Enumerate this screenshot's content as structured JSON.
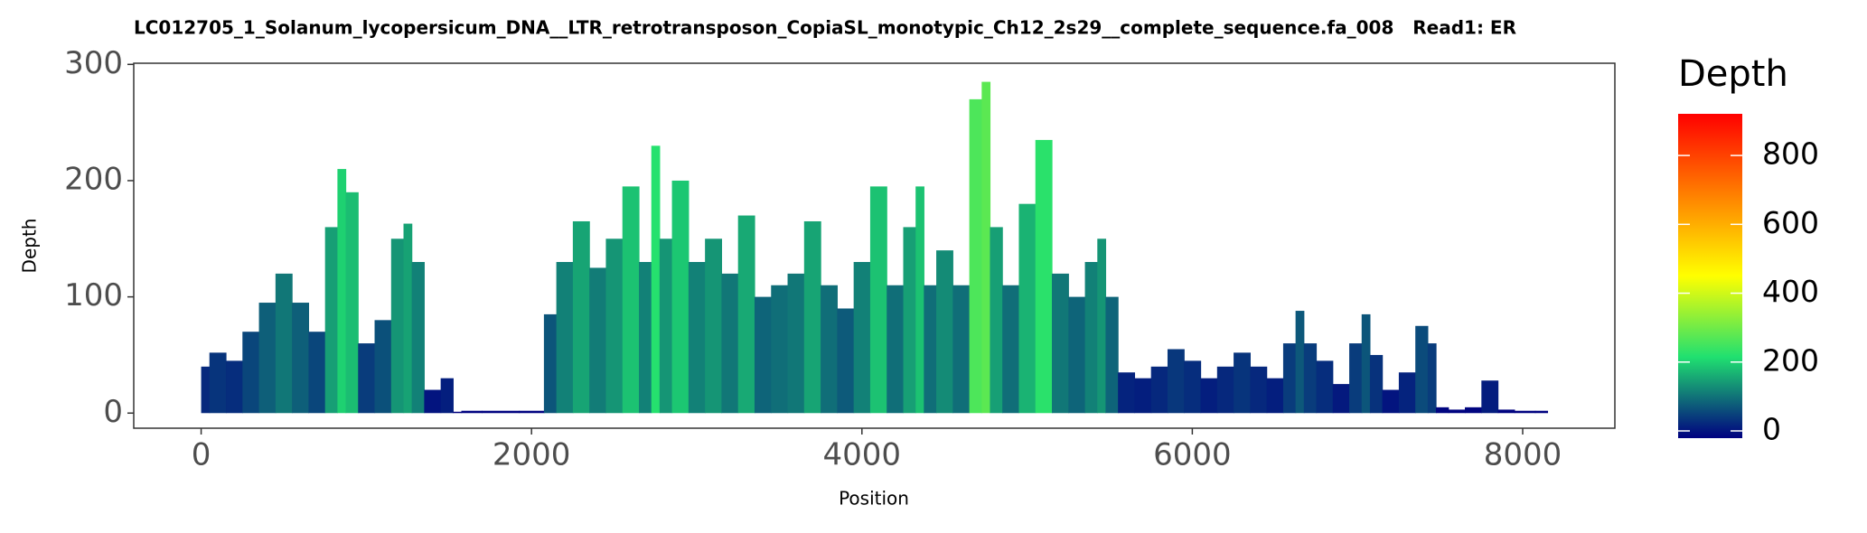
{
  "chart_data": {
    "type": "area",
    "title": "LC012705_1_Solanum_lycopersicum_DNA__LTR_retrotransposon_CopiaSL_monotypic_Ch12_2s29__complete_sequence.fa_008   Read1: ER",
    "x_label": "Position",
    "y_label": "Depth",
    "x": [
      0,
      100,
      200,
      300,
      400,
      500,
      600,
      700,
      800,
      850,
      900,
      1000,
      1100,
      1200,
      1250,
      1300,
      1400,
      1500,
      1550,
      1600,
      1800,
      2050,
      2100,
      2200,
      2300,
      2400,
      2500,
      2600,
      2700,
      2750,
      2800,
      2900,
      3000,
      3100,
      3200,
      3300,
      3400,
      3500,
      3600,
      3700,
      3800,
      3900,
      4000,
      4100,
      4200,
      4300,
      4350,
      4400,
      4500,
      4600,
      4700,
      4750,
      4800,
      4900,
      5000,
      5100,
      5200,
      5300,
      5400,
      5450,
      5500,
      5600,
      5700,
      5800,
      5900,
      6000,
      6100,
      6200,
      6300,
      6400,
      6500,
      6600,
      6650,
      6700,
      6800,
      6900,
      7000,
      7050,
      7100,
      7200,
      7300,
      7400,
      7450,
      7500,
      7600,
      7700,
      7800,
      7900,
      8000,
      8150
    ],
    "values": [
      40,
      52,
      45,
      70,
      95,
      120,
      95,
      70,
      160,
      210,
      190,
      60,
      80,
      150,
      163,
      130,
      20,
      30,
      0,
      2,
      2,
      2,
      85,
      130,
      165,
      125,
      150,
      195,
      130,
      230,
      150,
      200,
      130,
      150,
      120,
      170,
      100,
      110,
      120,
      165,
      110,
      90,
      130,
      195,
      110,
      160,
      195,
      110,
      140,
      110,
      270,
      285,
      160,
      110,
      180,
      235,
      120,
      100,
      130,
      150,
      100,
      35,
      30,
      40,
      55,
      45,
      30,
      40,
      52,
      40,
      30,
      60,
      88,
      60,
      45,
      25,
      60,
      85,
      50,
      20,
      35,
      75,
      60,
      5,
      3,
      5,
      28,
      3,
      2,
      2
    ],
    "xlim": [
      -408,
      8558
    ],
    "ylim": [
      -13,
      301
    ],
    "xticks": [
      0,
      2000,
      4000,
      6000,
      8000
    ],
    "yticks": [
      0,
      100,
      200,
      300
    ],
    "color_scale": {
      "title": "Depth",
      "limits": [
        0,
        900
      ],
      "colors": [
        "#000080",
        "#20e070",
        "#ffff00",
        "#ff8000",
        "#ff0000"
      ],
      "ticks": [
        0,
        200,
        400,
        600,
        800
      ]
    }
  }
}
